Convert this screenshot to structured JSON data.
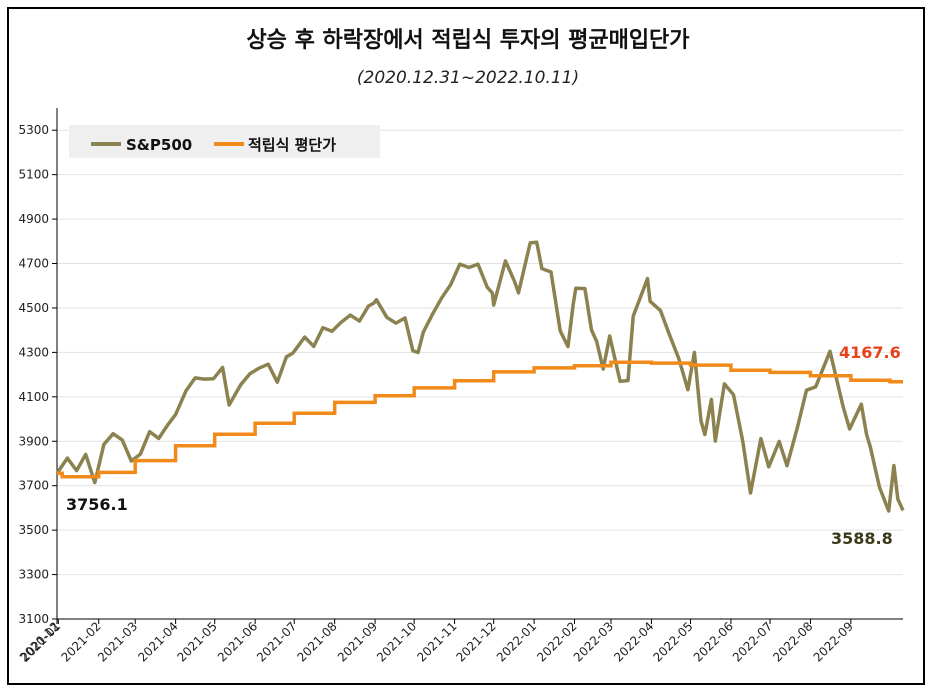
{
  "chart_data": {
    "type": "line",
    "title": "상승 후 하락장에서 적립식 투자의 평균매입단가",
    "subtitle": "(2020.12.31~2022.10.11)",
    "xlabel": "",
    "ylabel": "",
    "ylim": [
      3100,
      5400
    ],
    "yticks": [
      "3100",
      "3300",
      "3500",
      "3700",
      "3900",
      "4100",
      "4300",
      "4500",
      "4700",
      "4900",
      "5100",
      "5300"
    ],
    "x_tick_labels": [
      "2020-12",
      "2021-01",
      "2021-02",
      "2021-03",
      "2021-04",
      "2021-05",
      "2021-06",
      "2021-07",
      "2021-08",
      "2021-09",
      "2021-10",
      "2021-11",
      "2021-12",
      "2022-01",
      "2022-02",
      "2022-03",
      "2022-04",
      "2022-05",
      "2022-06",
      "2022-07",
      "2022-08",
      "2022-09"
    ],
    "legend_position": "top-left",
    "grid": "horizontal",
    "series": [
      {
        "name": "S&P500",
        "color": "#8b8250",
        "points": [
          [
            "2020-12-31",
            3756
          ],
          [
            "2021-01-08",
            3824
          ],
          [
            "2021-01-15",
            3768
          ],
          [
            "2021-01-22",
            3841
          ],
          [
            "2021-01-29",
            3714
          ],
          [
            "2021-02-05",
            3886
          ],
          [
            "2021-02-12",
            3934
          ],
          [
            "2021-02-19",
            3906
          ],
          [
            "2021-02-26",
            3811
          ],
          [
            "2021-03-05",
            3842
          ],
          [
            "2021-03-12",
            3943
          ],
          [
            "2021-03-19",
            3913
          ],
          [
            "2021-03-26",
            3974
          ],
          [
            "2021-04-01",
            4020
          ],
          [
            "2021-04-09",
            4128
          ],
          [
            "2021-04-16",
            4185
          ],
          [
            "2021-04-23",
            4180
          ],
          [
            "2021-04-30",
            4181
          ],
          [
            "2021-05-07",
            4232
          ],
          [
            "2021-05-12",
            4063
          ],
          [
            "2021-05-21",
            4155
          ],
          [
            "2021-05-28",
            4204
          ],
          [
            "2021-06-04",
            4229
          ],
          [
            "2021-06-11",
            4247
          ],
          [
            "2021-06-18",
            4166
          ],
          [
            "2021-06-25",
            4280
          ],
          [
            "2021-06-30",
            4297
          ],
          [
            "2021-07-09",
            4369
          ],
          [
            "2021-07-16",
            4327
          ],
          [
            "2021-07-23",
            4411
          ],
          [
            "2021-07-30",
            4395
          ],
          [
            "2021-08-06",
            4436
          ],
          [
            "2021-08-13",
            4468
          ],
          [
            "2021-08-20",
            4441
          ],
          [
            "2021-08-27",
            4509
          ],
          [
            "2021-08-31",
            4522
          ],
          [
            "2021-09-02",
            4537
          ],
          [
            "2021-09-10",
            4458
          ],
          [
            "2021-09-17",
            4432
          ],
          [
            "2021-09-24",
            4455
          ],
          [
            "2021-09-30",
            4307
          ],
          [
            "2021-10-04",
            4300
          ],
          [
            "2021-10-08",
            4391
          ],
          [
            "2021-10-15",
            4471
          ],
          [
            "2021-10-22",
            4544
          ],
          [
            "2021-10-29",
            4605
          ],
          [
            "2021-11-05",
            4697
          ],
          [
            "2021-11-12",
            4682
          ],
          [
            "2021-11-19",
            4697
          ],
          [
            "2021-11-26",
            4594
          ],
          [
            "2021-11-30",
            4567
          ],
          [
            "2021-12-01",
            4513
          ],
          [
            "2021-12-10",
            4712
          ],
          [
            "2021-12-17",
            4620
          ],
          [
            "2021-12-20",
            4568
          ],
          [
            "2021-12-29",
            4793
          ],
          [
            "2022-01-03",
            4796
          ],
          [
            "2022-01-07",
            4677
          ],
          [
            "2022-01-14",
            4662
          ],
          [
            "2022-01-21",
            4397
          ],
          [
            "2022-01-27",
            4326
          ],
          [
            "2022-01-31",
            4516
          ],
          [
            "2022-02-02",
            4589
          ],
          [
            "2022-02-09",
            4587
          ],
          [
            "2022-02-14",
            4401
          ],
          [
            "2022-02-18",
            4349
          ],
          [
            "2022-02-23",
            4225
          ],
          [
            "2022-02-28",
            4374
          ],
          [
            "2022-03-08",
            4170
          ],
          [
            "2022-03-14",
            4173
          ],
          [
            "2022-03-18",
            4463
          ],
          [
            "2022-03-29",
            4632
          ],
          [
            "2022-03-31",
            4530
          ],
          [
            "2022-04-08",
            4488
          ],
          [
            "2022-04-14",
            4392
          ],
          [
            "2022-04-22",
            4272
          ],
          [
            "2022-04-29",
            4132
          ],
          [
            "2022-05-04",
            4300
          ],
          [
            "2022-05-09",
            3991
          ],
          [
            "2022-05-12",
            3930
          ],
          [
            "2022-05-17",
            4088
          ],
          [
            "2022-05-20",
            3901
          ],
          [
            "2022-05-27",
            4158
          ],
          [
            "2022-06-03",
            4109
          ],
          [
            "2022-06-10",
            3901
          ],
          [
            "2022-06-16",
            3667
          ],
          [
            "2022-06-24",
            3912
          ],
          [
            "2022-06-30",
            3785
          ],
          [
            "2022-07-08",
            3899
          ],
          [
            "2022-07-14",
            3790
          ],
          [
            "2022-07-22",
            3962
          ],
          [
            "2022-07-29",
            4130
          ],
          [
            "2022-08-05",
            4145
          ],
          [
            "2022-08-16",
            4305
          ],
          [
            "2022-08-26",
            4058
          ],
          [
            "2022-08-31",
            3955
          ],
          [
            "2022-09-09",
            4067
          ],
          [
            "2022-09-13",
            3932
          ],
          [
            "2022-09-16",
            3873
          ],
          [
            "2022-09-23",
            3693
          ],
          [
            "2022-09-30",
            3586
          ],
          [
            "2022-10-04",
            3791
          ],
          [
            "2022-10-07",
            3640
          ],
          [
            "2022-10-11",
            3589
          ]
        ]
      },
      {
        "name": "적립식 평단가",
        "color": "#f28a1a",
        "steps": [
          [
            "2020-12-31",
            3756.1
          ],
          [
            "2021-01-04",
            3740
          ],
          [
            "2021-02-01",
            3760
          ],
          [
            "2021-03-01",
            3813
          ],
          [
            "2021-04-01",
            3880
          ],
          [
            "2021-05-01",
            3932
          ],
          [
            "2021-06-01",
            3981
          ],
          [
            "2021-07-01",
            4026
          ],
          [
            "2021-08-01",
            4075
          ],
          [
            "2021-09-01",
            4105
          ],
          [
            "2021-10-01",
            4140
          ],
          [
            "2021-11-01",
            4172
          ],
          [
            "2021-12-01",
            4212
          ],
          [
            "2022-01-01",
            4230
          ],
          [
            "2022-02-01",
            4240
          ],
          [
            "2022-03-01",
            4256
          ],
          [
            "2022-04-01",
            4252
          ],
          [
            "2022-05-01",
            4243
          ],
          [
            "2022-06-01",
            4220
          ],
          [
            "2022-07-01",
            4210
          ],
          [
            "2022-08-01",
            4195
          ],
          [
            "2022-09-01",
            4175
          ],
          [
            "2022-10-01",
            4167.6
          ],
          [
            "2022-10-11",
            4167.6
          ]
        ]
      }
    ],
    "annotations": [
      {
        "text": "3756.1",
        "color": "#111111"
      },
      {
        "text": "4167.6",
        "color": "#e8421a"
      },
      {
        "text": "3588.8",
        "color": "#3a3a1a"
      }
    ]
  }
}
